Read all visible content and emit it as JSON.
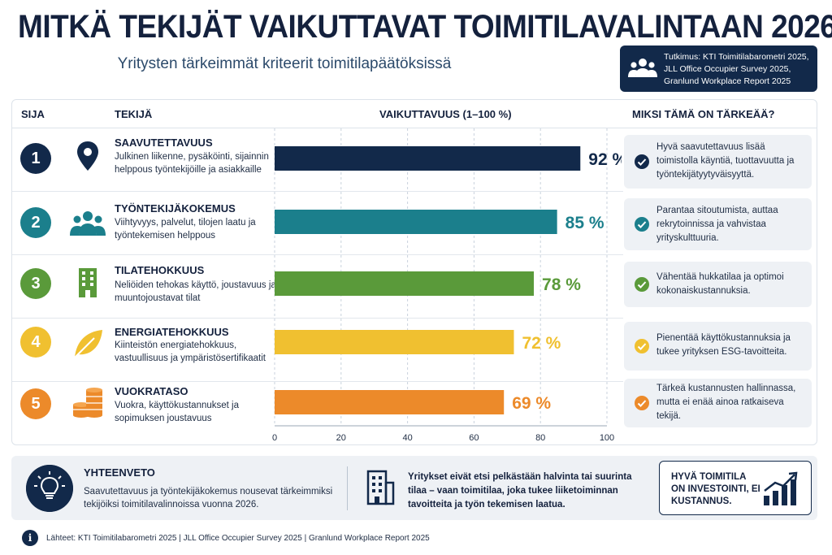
{
  "title": "MITKÄ TEKIJÄT VAIKUTTAVAT TOIMITILAVALINTAAN 2026?",
  "subtitle": "Yritysten tärkeimmät kriteerit toimitilapäätöksissä",
  "source_box": {
    "lines": [
      "Tutkimus: KTI Toimitilabarometri 2025,",
      "JLL Office Occupier Survey 2025,",
      "Granlund Workplace Report 2025"
    ],
    "icon": "people-icon"
  },
  "headers": {
    "rank": "SIJA",
    "factor": "TEKIJÄ",
    "impact": "VAIKUTTAVUUS (1–100 %)",
    "why": "MIKSI TÄMÄ ON TÄRKEÄÄ?"
  },
  "rows": [
    {
      "rank": "1",
      "color": "#12294a",
      "icon": "location-pin-icon",
      "name": "SAAVUTETTAVUUS",
      "desc": "Julkinen liikenne, pysäköinti, sijainnin helppous työntekijöille ja asiakkaille",
      "value_label": "92 %",
      "why": "Hyvä saavutettavuus lisää toimistolla käyntiä, tuottavuutta ja työntekijätyytyväisyyttä."
    },
    {
      "rank": "2",
      "color": "#1b7f8c",
      "icon": "people-icon",
      "name": "TYÖNTEKIJÄKOKEMUS",
      "desc": "Viihtyvyys, palvelut, tilojen laatu ja työntekemisen helppous",
      "value_label": "85 %",
      "why": "Parantaa sitoutumista, auttaa rekrytoinnissa ja vahvistaa yrityskulttuuria."
    },
    {
      "rank": "3",
      "color": "#5a9a3a",
      "icon": "building-icon",
      "name": "TILATEHOKKUUS",
      "desc": "Neliöiden tehokas käyttö, joustavuus ja muuntojoustavat tilat",
      "value_label": "78 %",
      "why": "Vähentää hukkatilaa ja optimoi kokonaiskustannuksia."
    },
    {
      "rank": "4",
      "color": "#f0c030",
      "icon": "leaf-icon",
      "name": "ENERGIATEHOKKUUS",
      "desc": "Kiinteistön energiatehokkuus, vastuullisuus ja ympäristösertifikaatit",
      "value_label": "72 %",
      "why": "Pienentää käyttökustannuksia ja tukee yrityksen ESG-tavoitteita."
    },
    {
      "rank": "5",
      "color": "#ec8a2a",
      "icon": "coins-icon",
      "name": "VUOKRATASO",
      "desc": "Vuokra, käyttökustannukset ja sopimuksen joustavuus",
      "value_label": "69 %",
      "why": "Tärkeä kustannusten hallinnassa, mutta ei enää ainoa ratkaiseva tekijä."
    }
  ],
  "chart_data": {
    "type": "bar",
    "orientation": "horizontal",
    "categories": [
      "SAAVUTETTAVUUS",
      "TYÖNTEKIJÄKOKEMUS",
      "TILATEHOKKUUS",
      "ENERGIATEHOKKUUS",
      "VUOKRATASO"
    ],
    "values": [
      92,
      85,
      78,
      72,
      69
    ],
    "colors": [
      "#12294a",
      "#1b7f8c",
      "#5a9a3a",
      "#f0c030",
      "#ec8a2a"
    ],
    "xlabel": "VAIKUTTAVUUS (1–100 %)",
    "xlim": [
      0,
      100
    ],
    "xticks": [
      0,
      20,
      40,
      60,
      80,
      100
    ],
    "grid": true
  },
  "summary": {
    "icon": "lightbulb-icon",
    "title": "YHTEENVETO",
    "text": "Saavutettavuus ja työntekijäkokemus nousevat tärkeimmiksi tekijöiksi toimitilavalinnoissa vuonna 2026.",
    "icon2": "office-building-icon",
    "text2": "Yritykset eivät etsi pelkästään halvinta tai suurinta tilaa – vaan toimitilaa, joka tukee liiketoiminnan tavoitteita ja työn tekemisen laatua.",
    "callout": "HYVÄ TOIMITILA ON INVESTOINTI, EI KUSTANNUS.",
    "callout_icon": "growth-chart-icon"
  },
  "footer": {
    "icon": "info-icon",
    "icon_glyph": "i",
    "text": "Lähteet: KTI Toimitilabarometri 2025 | JLL Office Occupier Survey 2025 | Granlund Workplace Report 2025"
  }
}
